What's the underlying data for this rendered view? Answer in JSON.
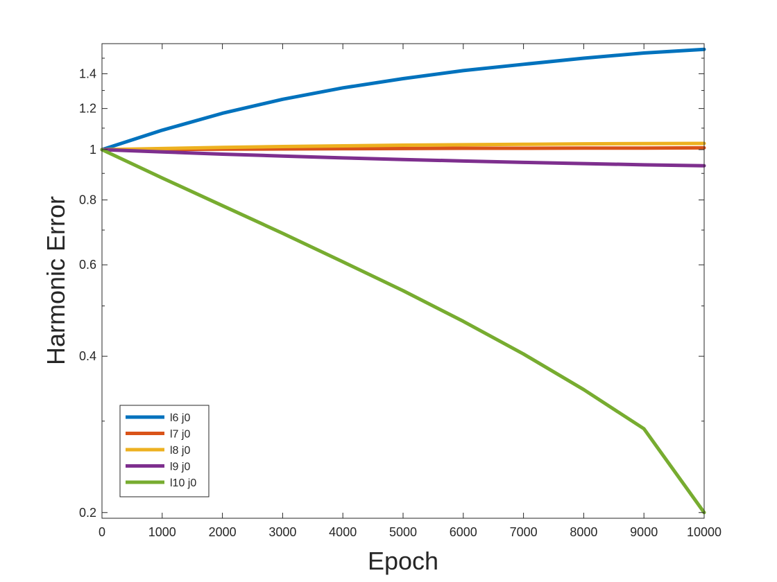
{
  "chart_data": {
    "type": "line",
    "xlabel": "Epoch",
    "ylabel": "Harmonic Error",
    "y_scale": "log",
    "xlim": [
      0,
      10000
    ],
    "ylim": [
      0.195,
      1.6
    ],
    "x_ticks": [
      0,
      1000,
      2000,
      3000,
      4000,
      5000,
      6000,
      7000,
      8000,
      9000,
      10000
    ],
    "x_tick_labels": [
      "0",
      "1000",
      "2000",
      "3000",
      "4000",
      "5000",
      "6000",
      "7000",
      "8000",
      "9000",
      "10000"
    ],
    "y_ticks": [
      0.2,
      0.4,
      0.6,
      0.8,
      1,
      1.2,
      1.4
    ],
    "y_tick_labels": [
      "0.2",
      "0.4",
      "0.6",
      "0.8",
      "1",
      "1.2",
      "1.4"
    ],
    "grid": false,
    "legend_position": "bottom-left",
    "x": [
      0,
      1000,
      2000,
      3000,
      4000,
      5000,
      6000,
      7000,
      8000,
      9000,
      10000
    ],
    "series": [
      {
        "name": "l6 j0",
        "color": "#0072BD",
        "values": [
          1.0,
          1.09,
          1.175,
          1.25,
          1.315,
          1.37,
          1.42,
          1.46,
          1.5,
          1.535,
          1.56
        ]
      },
      {
        "name": "l7 j0",
        "color": "#D95319",
        "values": [
          1.0,
          1.001,
          1.002,
          1.003,
          1.004,
          1.005,
          1.006,
          1.006,
          1.007,
          1.007,
          1.008
        ]
      },
      {
        "name": "l8 j0",
        "color": "#EDB120",
        "values": [
          1.0,
          1.005,
          1.01,
          1.014,
          1.017,
          1.02,
          1.022,
          1.024,
          1.026,
          1.027,
          1.028
        ]
      },
      {
        "name": "l9 j0",
        "color": "#7E2F8E",
        "values": [
          1.0,
          0.99,
          0.98,
          0.972,
          0.964,
          0.957,
          0.951,
          0.945,
          0.94,
          0.935,
          0.931
        ]
      },
      {
        "name": "l10 j0",
        "color": "#77AC30",
        "values": [
          1.0,
          0.882,
          0.78,
          0.69,
          0.608,
          0.535,
          0.467,
          0.404,
          0.345,
          0.29,
          0.2
        ]
      }
    ]
  }
}
